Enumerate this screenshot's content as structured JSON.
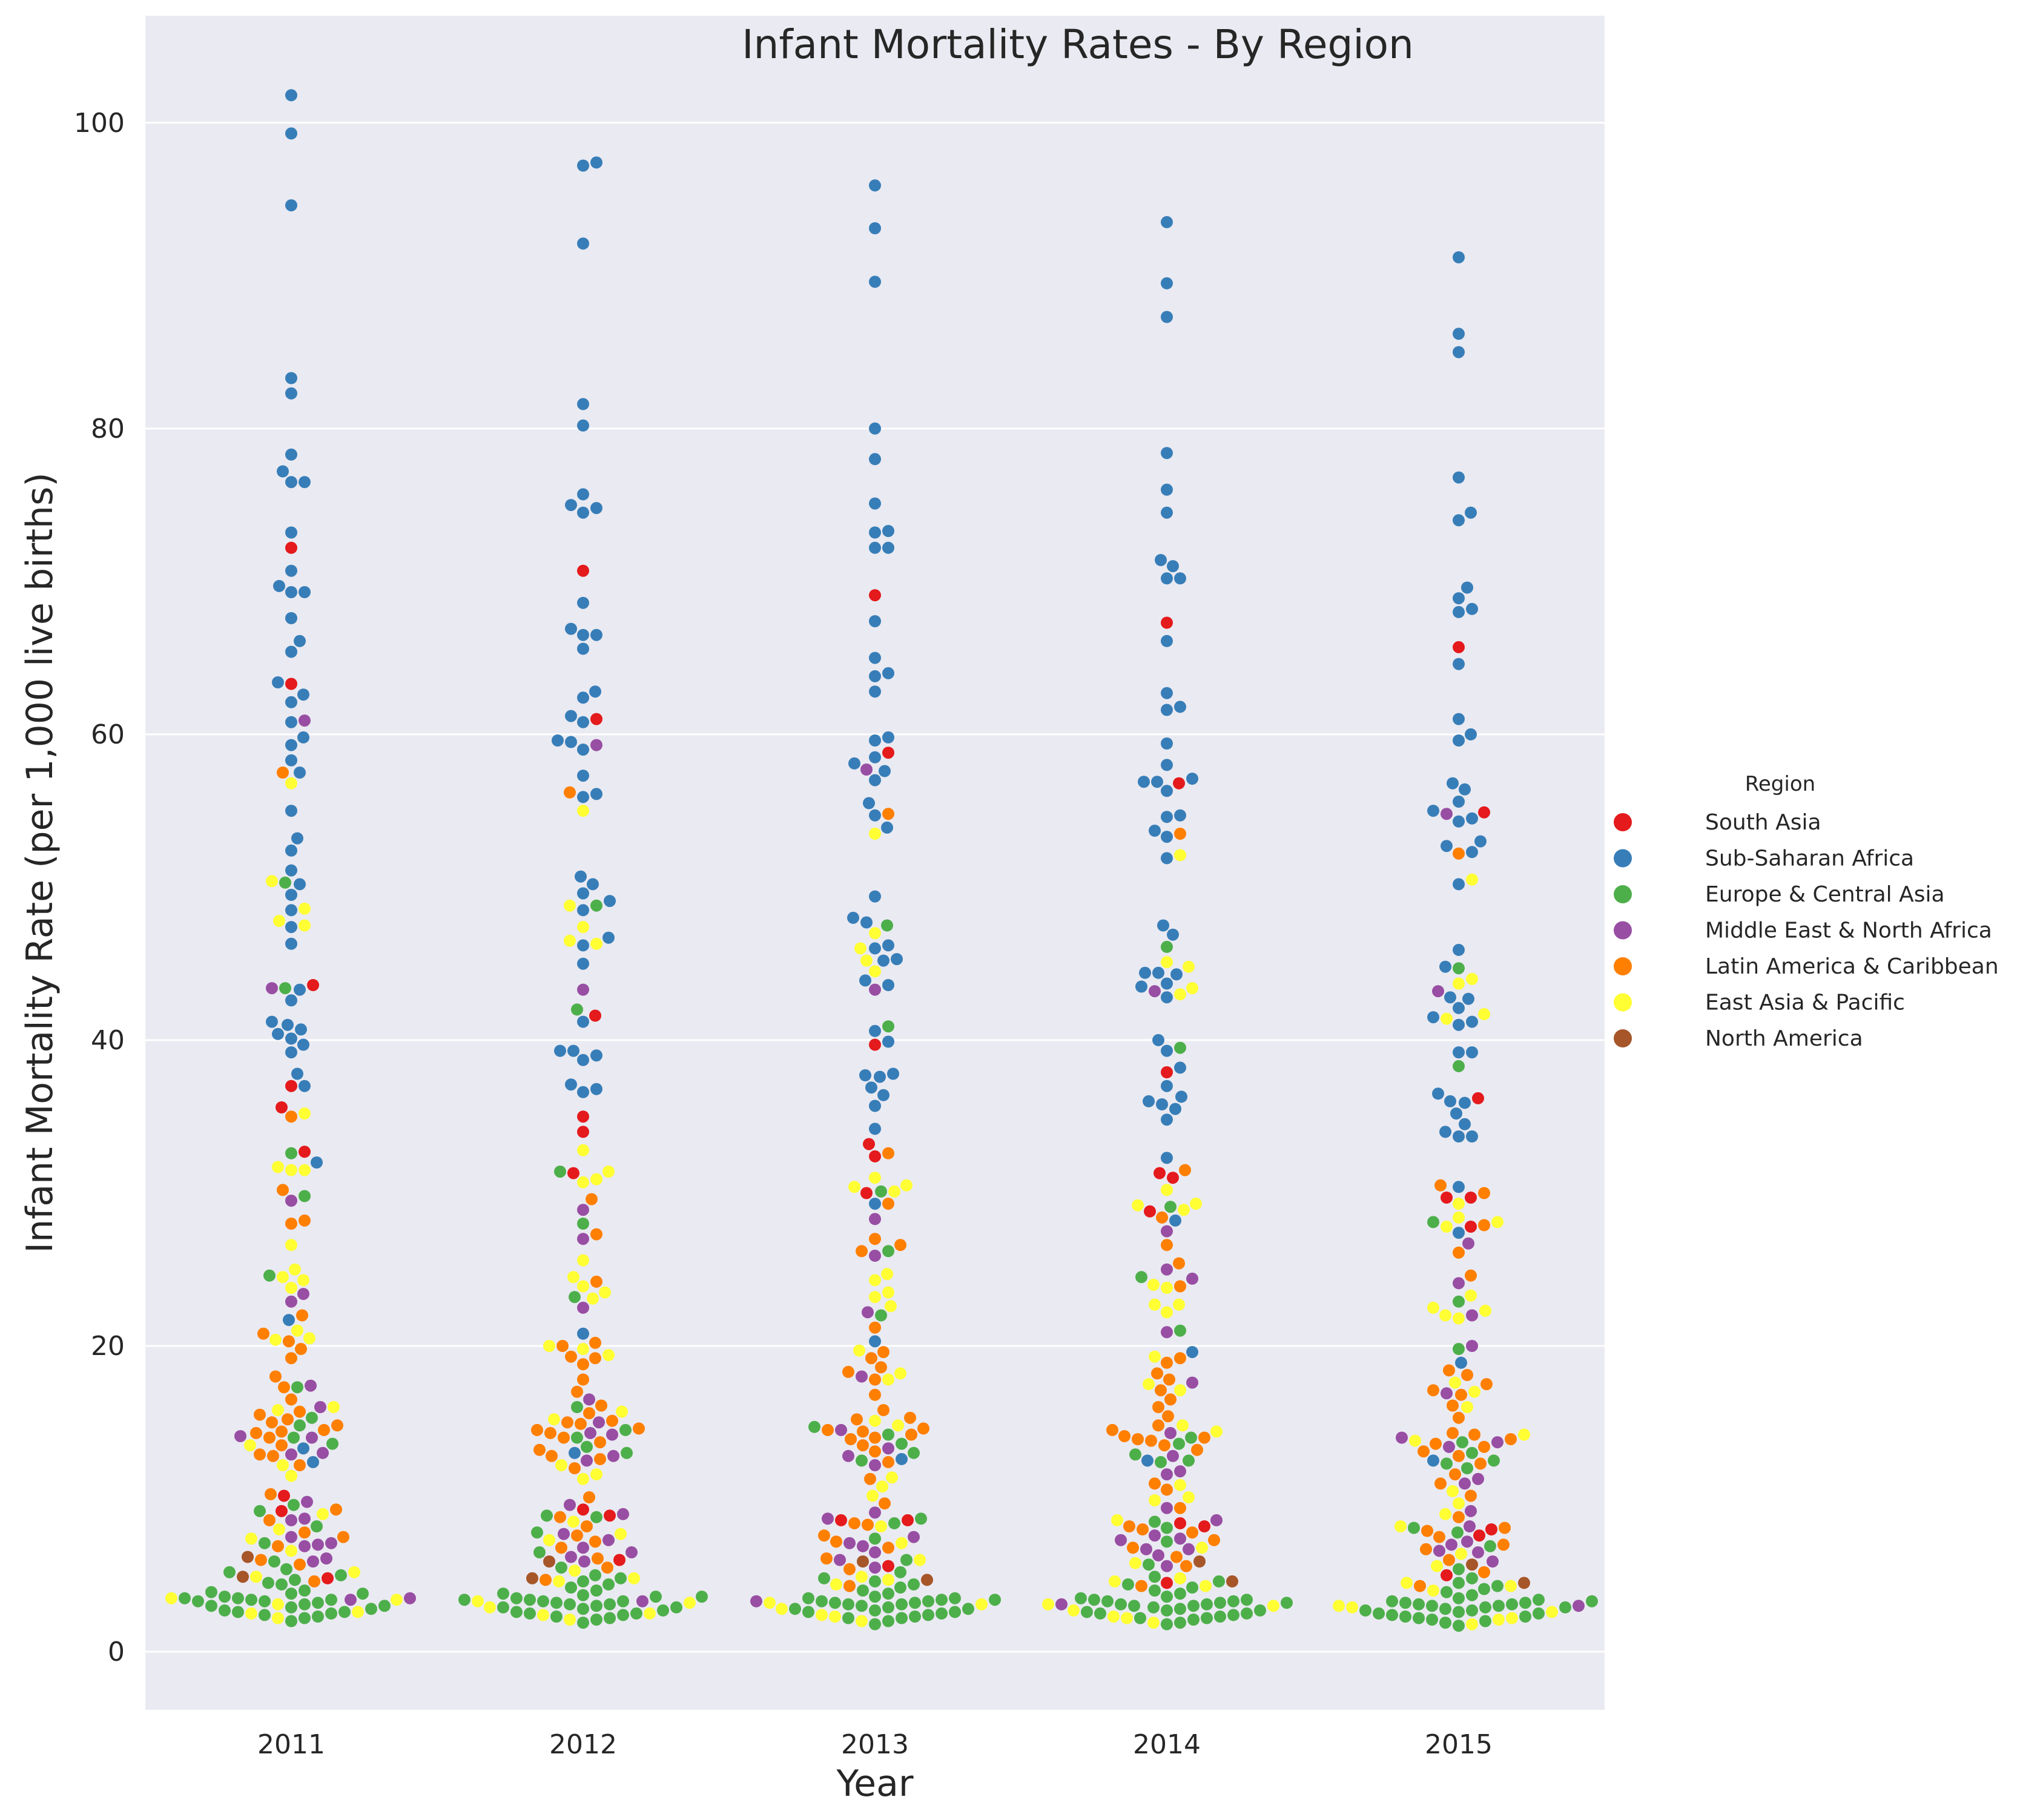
{
  "chart_data": {
    "type": "scatter",
    "subtype": "swarm",
    "title": "Infant Mortality Rates - By Region",
    "xlabel": "Year",
    "ylabel": "Infant Mortality Rate (per 1,000 live births)",
    "categories": [
      "2011",
      "2012",
      "2013",
      "2014",
      "2015"
    ],
    "ylim": [
      -3.8,
      107
    ],
    "yticks": [
      0,
      20,
      40,
      60,
      80,
      100
    ],
    "grid": "horizontal",
    "background": "#eaeaf2",
    "legend": {
      "title": "Region",
      "placement": "right"
    },
    "series": [
      {
        "name": "South Asia",
        "color": "#e41a1c",
        "values": [
          [
            72.2,
            63.3,
            43.6,
            37.0,
            35.6,
            32.7,
            10.2,
            9.2,
            4.8
          ],
          [
            70.7,
            61.0,
            41.6,
            35.0,
            34.0,
            31.3,
            9.3,
            8.9,
            6.0
          ],
          [
            69.1,
            58.8,
            39.7,
            33.2,
            32.4,
            30.0,
            8.6,
            8.6,
            5.6
          ],
          [
            67.3,
            56.8,
            37.9,
            31.3,
            31.0,
            28.8,
            8.4,
            8.2,
            4.5
          ],
          [
            65.7,
            54.9,
            36.2,
            29.7,
            29.7,
            27.8,
            8.0,
            7.6,
            5.0
          ]
        ]
      },
      {
        "name": "Sub-Saharan Africa",
        "color": "#377eb8",
        "values": [
          [
            101.8,
            99.3,
            94.6,
            83.3,
            82.3,
            78.3,
            77.2,
            76.5,
            76.5,
            73.2,
            70.7,
            69.7,
            69.3,
            69.3,
            67.6,
            66.1,
            65.4,
            63.4,
            62.6,
            62.1,
            60.8,
            59.8,
            59.3,
            58.3,
            57.5,
            55.0,
            53.2,
            52.4,
            51.1,
            50.2,
            49.5,
            48.5,
            47.4,
            46.3,
            43.3,
            42.6,
            41.2,
            41.0,
            40.7,
            40.4,
            40.1,
            39.7,
            39.2,
            37.8,
            37.0,
            32.0,
            21.7,
            13.3,
            12.4
          ],
          [
            97.4,
            97.2,
            92.1,
            81.6,
            80.2,
            75.7,
            75.0,
            74.8,
            74.5,
            68.6,
            66.9,
            66.5,
            66.5,
            65.6,
            62.8,
            62.4,
            61.2,
            60.8,
            59.6,
            59.5,
            59.0,
            57.3,
            56.1,
            55.9,
            50.7,
            50.2,
            49.6,
            49.1,
            48.5,
            46.7,
            46.2,
            45.0,
            41.2,
            39.3,
            39.3,
            39.0,
            38.7,
            37.1,
            36.8,
            36.6,
            20.8,
            13.0
          ],
          [
            95.9,
            93.1,
            89.6,
            80.0,
            78.0,
            75.1,
            73.3,
            73.2,
            72.2,
            72.2,
            67.4,
            65.0,
            64.0,
            63.8,
            62.8,
            59.8,
            59.6,
            58.5,
            58.1,
            57.6,
            57.0,
            55.5,
            54.7,
            53.9,
            49.4,
            48.0,
            47.7,
            46.2,
            46.0,
            45.3,
            45.2,
            43.9,
            43.6,
            40.6,
            39.9,
            37.8,
            37.7,
            37.6,
            36.9,
            36.4,
            35.7,
            34.2,
            29.3,
            20.3,
            12.6
          ],
          [
            93.5,
            89.5,
            87.3,
            78.4,
            76.0,
            74.5,
            71.4,
            71.0,
            70.2,
            70.2,
            66.1,
            62.7,
            61.8,
            61.6,
            59.4,
            58.0,
            57.1,
            56.9,
            56.9,
            56.3,
            54.7,
            54.6,
            53.7,
            53.3,
            51.9,
            47.5,
            46.9,
            44.4,
            44.4,
            44.3,
            43.7,
            43.5,
            42.8,
            40.0,
            39.3,
            38.2,
            37.0,
            36.3,
            36.0,
            35.8,
            35.5,
            34.8,
            32.3,
            28.2,
            19.6,
            12.5
          ],
          [
            91.2,
            86.2,
            85.0,
            76.8,
            74.5,
            74.0,
            69.6,
            68.9,
            68.2,
            68.0,
            64.6,
            61.0,
            60.0,
            59.6,
            56.8,
            56.4,
            55.6,
            55.0,
            54.5,
            54.3,
            53.0,
            52.7,
            52.3,
            50.2,
            45.9,
            44.8,
            42.8,
            42.7,
            42.1,
            41.5,
            41.2,
            41.0,
            39.2,
            39.2,
            36.5,
            36.0,
            35.9,
            35.2,
            34.5,
            34.0,
            33.7,
            33.7,
            30.4,
            27.4,
            18.9,
            12.5
          ]
        ]
      },
      {
        "name": "Europe & Central Asia",
        "color": "#4daf4a",
        "values": [
          [
            50.3,
            43.4,
            32.6,
            29.8,
            24.6,
            17.3,
            15.3,
            14.8,
            14.0,
            13.6,
            9.6,
            9.2,
            8.2,
            7.1,
            5.9,
            5.4,
            5.2,
            5.0,
            4.7,
            4.5,
            4.4,
            4.0,
            3.9,
            3.8,
            3.8,
            3.6,
            3.5,
            3.5,
            3.4,
            3.4,
            3.3,
            3.3,
            3.2,
            3.1,
            3.0,
            3.0,
            2.9,
            2.8,
            2.7,
            2.6,
            2.6,
            2.5,
            2.4,
            2.3,
            2.2,
            2.0
          ],
          [
            48.8,
            42.0,
            31.4,
            28.0,
            23.2,
            16.0,
            14.5,
            14.0,
            13.4,
            13.0,
            8.9,
            8.8,
            7.8,
            6.5,
            5.5,
            5.0,
            4.8,
            4.6,
            4.4,
            4.2,
            4.0,
            3.8,
            3.7,
            3.6,
            3.6,
            3.5,
            3.4,
            3.4,
            3.3,
            3.3,
            3.2,
            3.1,
            3.1,
            3.0,
            2.9,
            2.9,
            2.8,
            2.7,
            2.6,
            2.5,
            2.5,
            2.4,
            2.3,
            2.2,
            2.1,
            1.9
          ],
          [
            47.5,
            40.9,
            30.1,
            26.2,
            22.0,
            14.7,
            14.2,
            13.6,
            13.0,
            12.5,
            8.7,
            8.4,
            7.4,
            6.0,
            5.2,
            4.8,
            4.6,
            4.4,
            4.2,
            4.0,
            3.8,
            3.6,
            3.5,
            3.5,
            3.4,
            3.4,
            3.3,
            3.3,
            3.2,
            3.2,
            3.1,
            3.1,
            3.0,
            2.9,
            2.8,
            2.8,
            2.7,
            2.6,
            2.6,
            2.5,
            2.4,
            2.3,
            2.2,
            2.2,
            2.0,
            1.8
          ],
          [
            46.1,
            39.5,
            29.1,
            24.5,
            21.0,
            14.0,
            13.6,
            12.9,
            12.5,
            12.4,
            8.5,
            8.1,
            7.2,
            5.7,
            4.9,
            4.6,
            4.4,
            4.2,
            4.0,
            3.8,
            3.6,
            3.5,
            3.4,
            3.4,
            3.3,
            3.3,
            3.2,
            3.2,
            3.1,
            3.1,
            3.0,
            3.0,
            2.9,
            2.8,
            2.7,
            2.7,
            2.6,
            2.5,
            2.5,
            2.4,
            2.3,
            2.2,
            2.2,
            2.1,
            1.9,
            1.8
          ],
          [
            44.7,
            38.3,
            28.1,
            22.9,
            19.8,
            13.7,
            13.0,
            12.5,
            12.3,
            12.0,
            8.1,
            7.8,
            6.9,
            5.4,
            4.8,
            4.5,
            4.3,
            4.1,
            3.9,
            3.7,
            3.5,
            3.4,
            3.3,
            3.3,
            3.2,
            3.2,
            3.1,
            3.1,
            3.0,
            3.0,
            2.9,
            2.9,
            2.8,
            2.7,
            2.7,
            2.6,
            2.5,
            2.5,
            2.4,
            2.3,
            2.3,
            2.2,
            2.1,
            2.0,
            1.9,
            1.7
          ]
        ]
      },
      {
        "name": "Middle East & North Africa",
        "color": "#984ea3",
        "values": [
          [
            60.9,
            43.4,
            29.5,
            23.4,
            22.9,
            17.4,
            16.0,
            14.1,
            14.0,
            13.0,
            12.9,
            9.8,
            8.7,
            8.6,
            7.5,
            7.1,
            7.0,
            6.9,
            6.1,
            5.9,
            3.5,
            3.4
          ],
          [
            59.3,
            43.3,
            28.9,
            27.0,
            22.5,
            16.5,
            15.0,
            14.3,
            14.2,
            12.8,
            12.5,
            9.6,
            9.0,
            7.7,
            7.3,
            6.8,
            6.5,
            6.2,
            5.9,
            3.3
          ],
          [
            57.7,
            43.3,
            28.3,
            25.9,
            22.2,
            18.0,
            14.5,
            13.3,
            12.8,
            12.2,
            9.1,
            8.7,
            7.5,
            7.1,
            6.9,
            6.5,
            6.0,
            5.5,
            3.3
          ],
          [
            43.2,
            27.5,
            25.0,
            24.4,
            20.9,
            17.6,
            14.3,
            12.8,
            11.8,
            11.6,
            9.4,
            8.6,
            7.6,
            7.4,
            7.3,
            6.7,
            6.7,
            6.3,
            5.6,
            3.1
          ],
          [
            54.8,
            43.2,
            26.7,
            24.1,
            22.0,
            20.0,
            16.9,
            14.0,
            13.7,
            13.4,
            11.3,
            11.0,
            9.2,
            8.2,
            7.2,
            7.0,
            6.6,
            6.5,
            5.9,
            3.0
          ]
        ]
      },
      {
        "name": "Latin America & Caribbean",
        "color": "#ff7f00",
        "values": [
          [
            57.5,
            35.0,
            30.2,
            28.2,
            28.0,
            22.0,
            20.8,
            20.3,
            19.8,
            19.2,
            18.0,
            17.3,
            16.5,
            15.7,
            15.5,
            15.2,
            15.0,
            14.8,
            14.5,
            14.4,
            14.3,
            14.0,
            13.5,
            12.9,
            12.8,
            12.2,
            10.3,
            9.3,
            8.6,
            7.8,
            7.5,
            6.9,
            6.0,
            5.7,
            4.6
          ],
          [
            56.2,
            29.6,
            27.3,
            24.2,
            20.2,
            20.0,
            19.3,
            19.2,
            18.8,
            17.8,
            17.0,
            16.1,
            15.6,
            15.1,
            15.0,
            14.9,
            14.6,
            14.5,
            14.3,
            14.0,
            13.7,
            13.2,
            12.8,
            12.6,
            12.0,
            10.1,
            8.8,
            8.2,
            7.6,
            7.2,
            6.8,
            6.1,
            5.5,
            4.7
          ],
          [
            54.8,
            32.6,
            29.3,
            27.0,
            26.6,
            26.2,
            21.2,
            19.6,
            19.2,
            18.6,
            18.3,
            17.8,
            16.8,
            15.8,
            15.3,
            15.2,
            14.6,
            14.5,
            14.4,
            14.2,
            14.0,
            13.9,
            13.5,
            13.1,
            12.4,
            11.3,
            9.7,
            8.4,
            8.3,
            7.6,
            7.2,
            6.8,
            6.1,
            5.4,
            4.3
          ],
          [
            53.5,
            31.5,
            28.4,
            26.6,
            25.4,
            23.9,
            19.2,
            18.9,
            18.2,
            17.8,
            17.1,
            16.5,
            16.0,
            15.4,
            14.8,
            14.5,
            14.1,
            14.0,
            13.9,
            13.8,
            13.5,
            13.2,
            11.0,
            10.6,
            9.4,
            8.2,
            8.0,
            7.8,
            7.3,
            6.8,
            6.2,
            5.6,
            4.3
          ],
          [
            52.2,
            30.5,
            30.0,
            27.9,
            26.1,
            24.6,
            18.4,
            18.1,
            17.5,
            17.1,
            16.8,
            16.1,
            15.3,
            14.3,
            14.2,
            13.9,
            13.6,
            13.4,
            13.1,
            12.8,
            12.3,
            11.6,
            11.0,
            10.2,
            8.8,
            8.1,
            7.9,
            7.5,
            7.0,
            6.7,
            6.0,
            5.2,
            4.3
          ]
        ]
      },
      {
        "name": "East Asia & Pacific",
        "color": "#ffff33",
        "values": [
          [
            56.8,
            50.4,
            48.6,
            47.8,
            47.5,
            35.2,
            31.7,
            31.5,
            31.5,
            26.6,
            25.0,
            24.5,
            24.3,
            23.8,
            21.0,
            20.5,
            20.4,
            16.0,
            15.8,
            13.5,
            12.2,
            11.5,
            9.0,
            8.0,
            7.4,
            6.6,
            5.2,
            4.9,
            3.5,
            3.4,
            3.1,
            2.6,
            2.5,
            2.2
          ],
          [
            55.0,
            48.8,
            47.4,
            46.5,
            46.3,
            32.8,
            31.4,
            30.9,
            30.7,
            25.6,
            24.5,
            23.9,
            23.5,
            23.1,
            20.0,
            19.8,
            19.4,
            15.7,
            15.2,
            12.2,
            11.6,
            11.3,
            8.5,
            7.7,
            7.3,
            5.3,
            4.8,
            4.6,
            3.3,
            3.2,
            2.9,
            2.5,
            2.4,
            2.1
          ],
          [
            53.5,
            47.0,
            46.0,
            45.2,
            44.5,
            31.0,
            30.5,
            30.4,
            30.1,
            24.7,
            24.3,
            23.5,
            23.2,
            22.6,
            19.7,
            18.2,
            17.8,
            15.1,
            14.8,
            11.4,
            10.8,
            10.2,
            8.2,
            7.1,
            6.0,
            4.9,
            4.7,
            4.4,
            3.2,
            3.1,
            2.8,
            2.4,
            2.3,
            2.0
          ],
          [
            52.1,
            45.1,
            44.8,
            43.4,
            43.0,
            30.2,
            29.3,
            29.2,
            28.9,
            24.0,
            23.8,
            22.7,
            22.7,
            22.2,
            19.3,
            17.5,
            17.1,
            14.8,
            14.4,
            10.9,
            10.1,
            9.9,
            8.6,
            6.8,
            5.8,
            4.8,
            4.6,
            4.3,
            3.1,
            3.0,
            2.7,
            2.3,
            2.2,
            1.9
          ],
          [
            50.5,
            44.0,
            43.7,
            41.7,
            41.4,
            29.3,
            28.4,
            28.1,
            27.8,
            23.3,
            22.5,
            22.3,
            22.0,
            21.8,
            17.6,
            17.0,
            16.0,
            14.2,
            13.8,
            10.5,
            9.7,
            9.0,
            8.2,
            6.4,
            5.6,
            4.5,
            4.3,
            4.0,
            3.0,
            2.9,
            2.6,
            2.2,
            2.1,
            1.8
          ]
        ]
      },
      {
        "name": "North America",
        "color": "#a65628",
        "values": [
          [
            4.9,
            6.2
          ],
          [
            4.8,
            5.9
          ],
          [
            4.7,
            5.9
          ],
          [
            4.6,
            5.9
          ],
          [
            4.5,
            5.7
          ]
        ]
      }
    ]
  }
}
